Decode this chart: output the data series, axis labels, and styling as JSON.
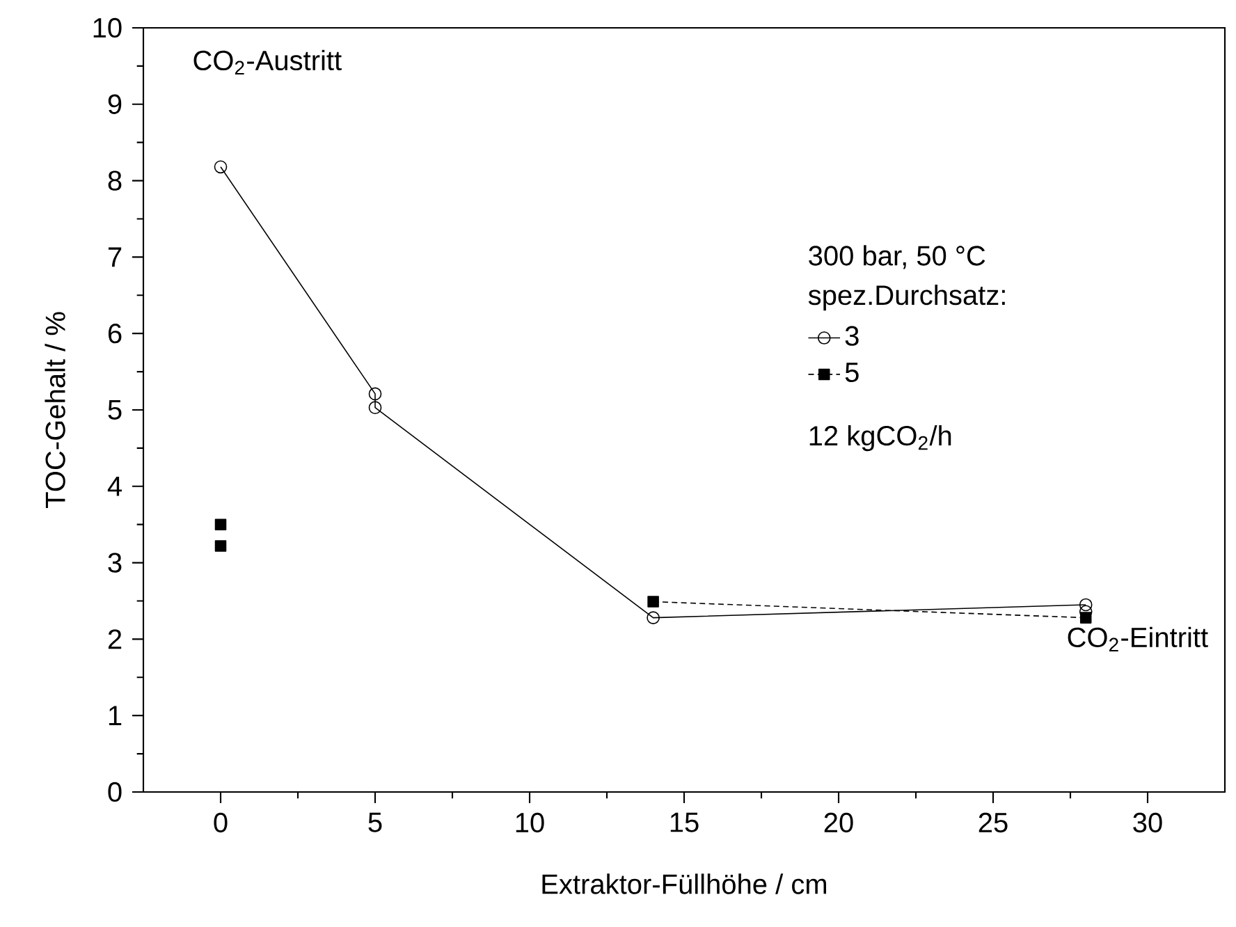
{
  "chart_data": {
    "type": "line",
    "xlabel": "Extraktor-Füllhöhe / cm",
    "ylabel": "TOC-Gehalt / %",
    "xlim": [
      -2.5,
      32.5
    ],
    "xticks": [
      0,
      5,
      10,
      15,
      20,
      25,
      30
    ],
    "ylim": [
      0,
      10
    ],
    "yticks": [
      0,
      1,
      2,
      3,
      4,
      5,
      6,
      7,
      8,
      9,
      10
    ],
    "legend": "right",
    "legend_title": "spez.Durchsatz:",
    "annotations": [
      "CO$_{2}$-Austritt",
      "CO$_{2}$-Eintritt",
      "300 bar, 50 °C",
      "12 kgCO$_{2}$/h"
    ],
    "series": [
      {
        "name": "3",
        "color": "#000000",
        "marker": "circle",
        "line_style": "solid",
        "x": [
          0,
          5,
          5,
          14,
          28
        ],
        "values": [
          8.18,
          5.21,
          5.03,
          2.28,
          2.45
        ]
      },
      {
        "name": "5",
        "color": "#000000",
        "marker": "square",
        "line_style": "dashed",
        "x": [
          14,
          28
        ],
        "values": [
          2.49,
          2.28
        ]
      },
      {
        "type": "scatter",
        "color": "#000000",
        "marker": "circle",
        "x": [
          28
        ],
        "values": [
          2.36
        ]
      },
      {
        "type": "scatter",
        "color": "#000000",
        "marker": "square",
        "x": [
          0,
          0
        ],
        "values": [
          3.5,
          3.22
        ]
      }
    ]
  }
}
